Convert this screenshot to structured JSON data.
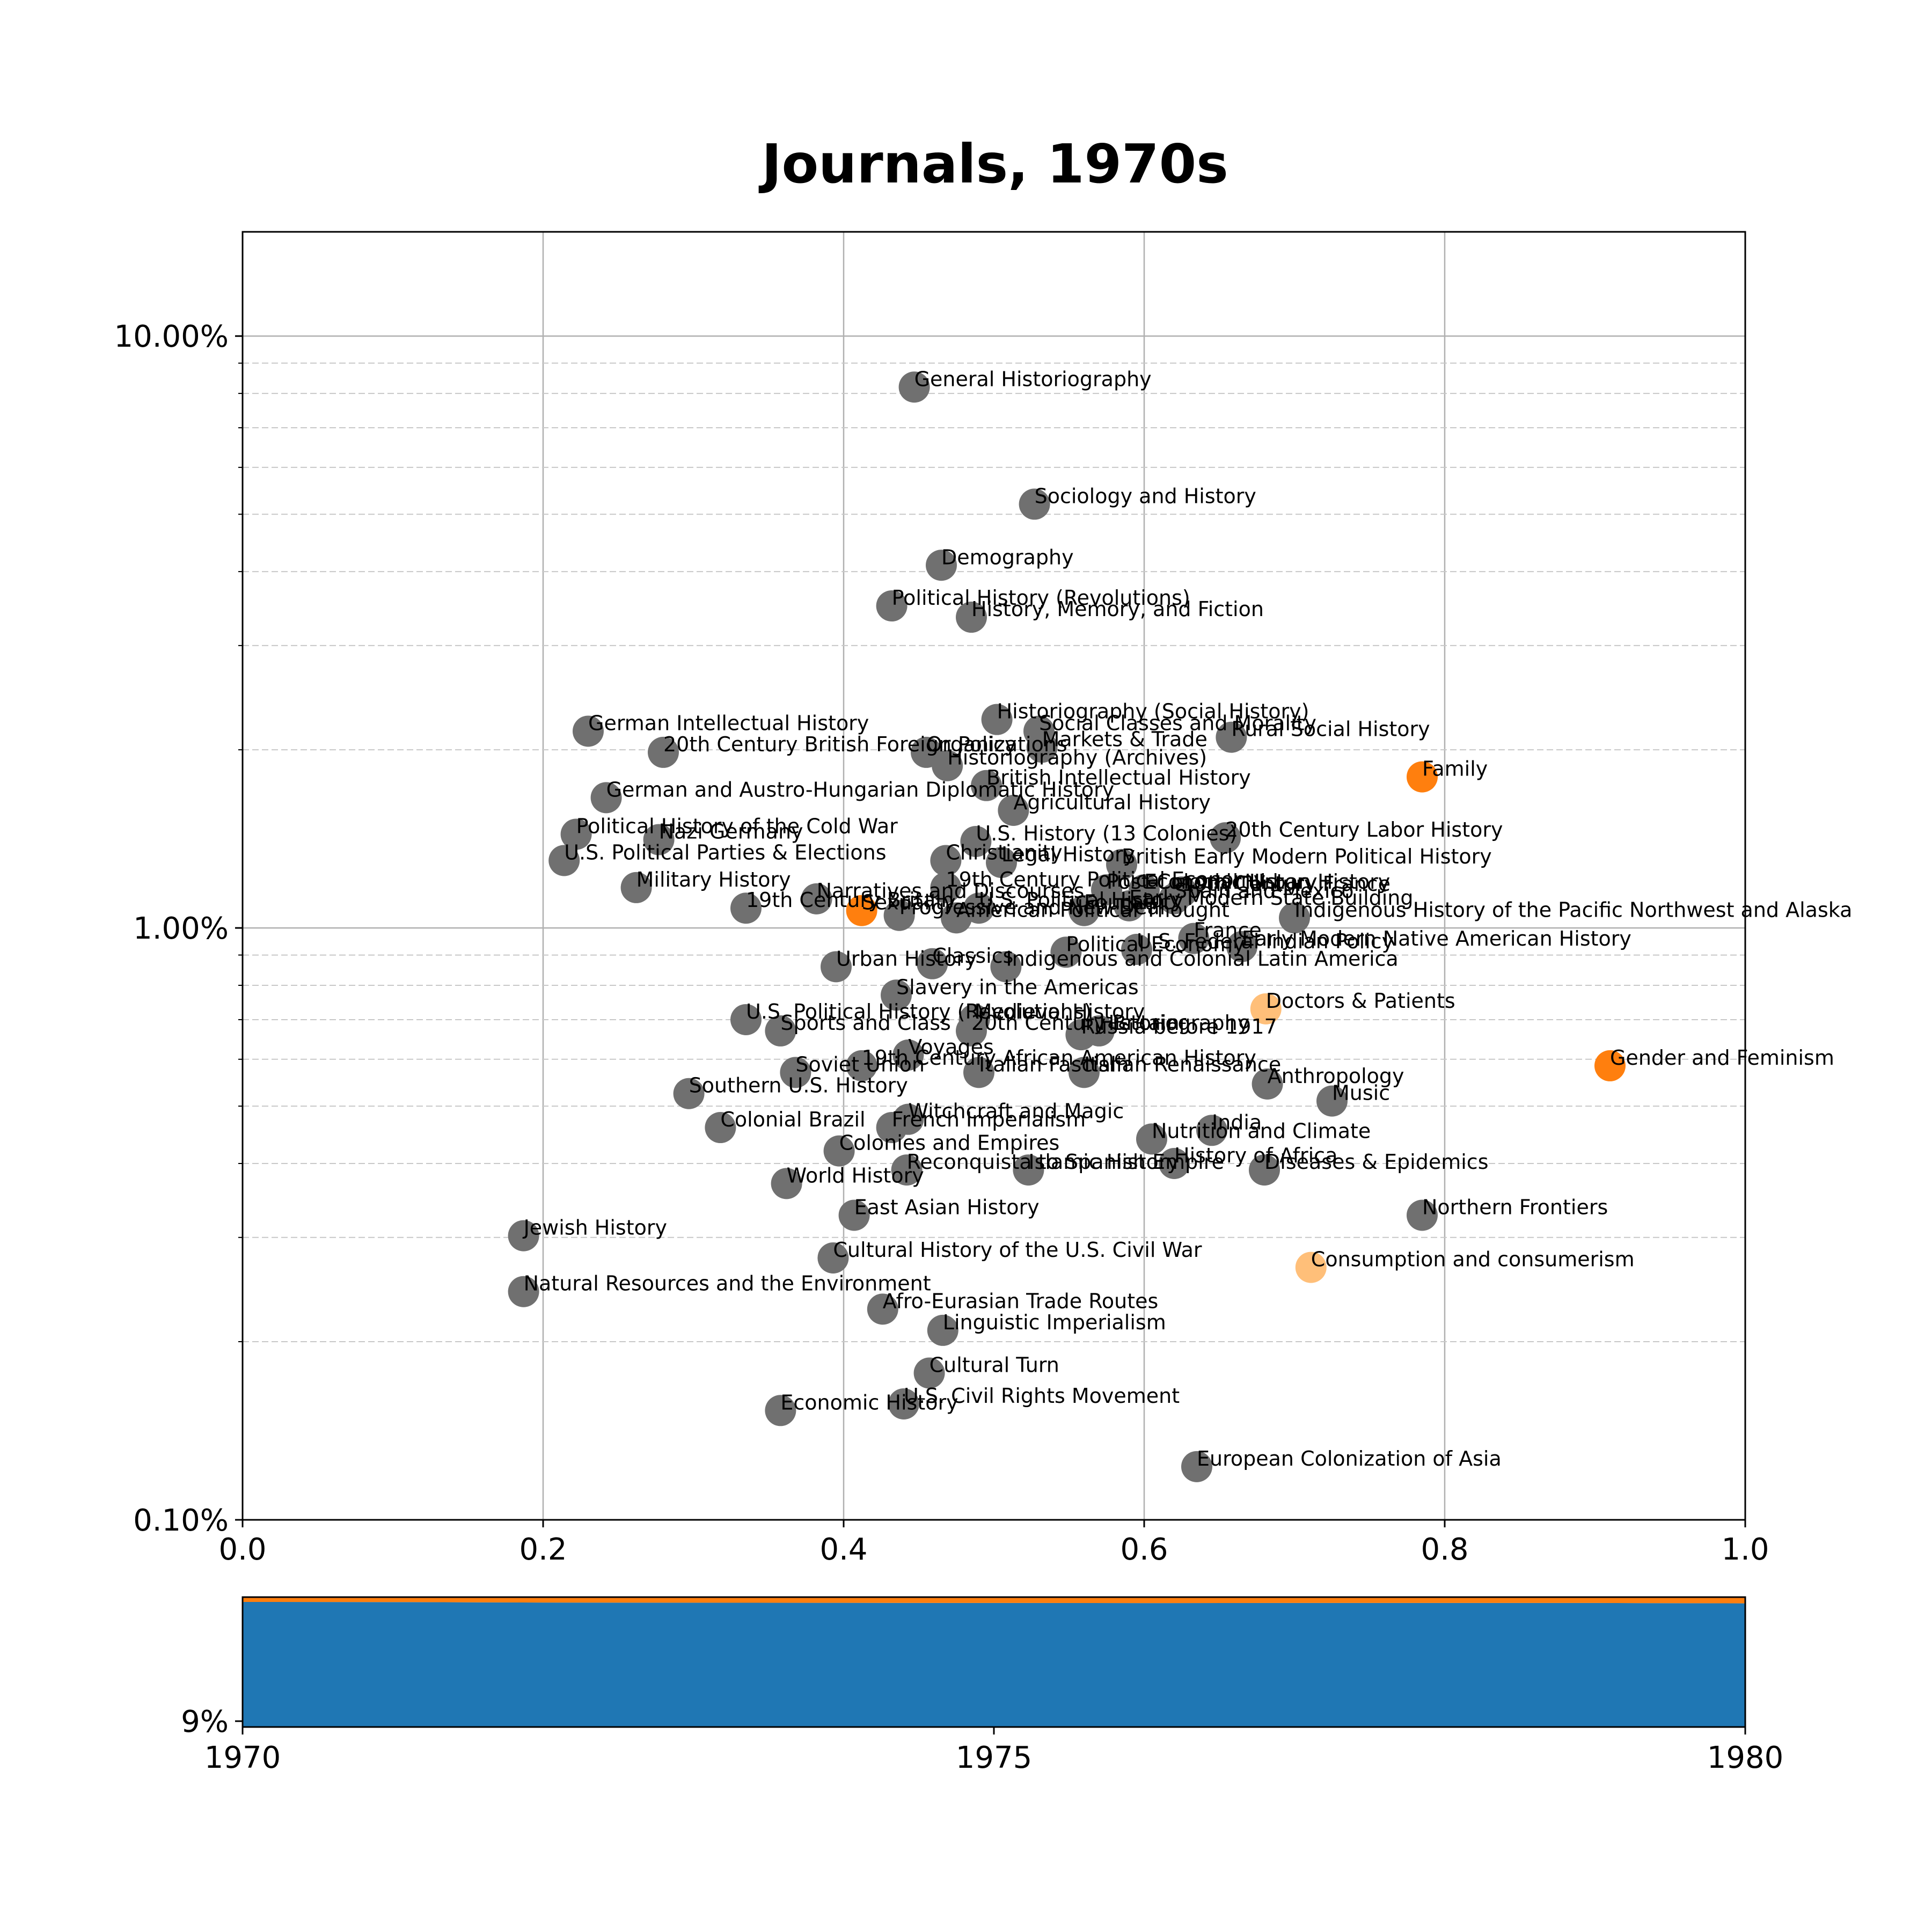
{
  "chart_data": [
    {
      "type": "scatter",
      "title": "Journals, 1970s",
      "xlabel": "",
      "ylabel": "",
      "xlim": [
        0.0,
        1.0
      ],
      "ylim": [
        0.1,
        15.0
      ],
      "yscale": "log",
      "grid": true,
      "x_ticks": [
        "0.0",
        "0.2",
        "0.4",
        "0.6",
        "0.8",
        "1.0"
      ],
      "y_ticks": [
        "0.10%",
        "1.00%",
        "10.00%"
      ],
      "colors": {
        "default": "#707070",
        "highlight": "#ff7f0e",
        "light_highlight": "#ffbf79"
      },
      "points": [
        {
          "label": "General Historiography",
          "x": 0.447,
          "y": 8.2,
          "color": "default"
        },
        {
          "label": "Sociology and History",
          "x": 0.527,
          "y": 5.2,
          "color": "default"
        },
        {
          "label": "Demography",
          "x": 0.465,
          "y": 4.1,
          "color": "default"
        },
        {
          "label": "Political History (Revolutions)",
          "x": 0.432,
          "y": 3.5,
          "color": "default"
        },
        {
          "label": "History, Memory, and Fiction",
          "x": 0.485,
          "y": 3.35,
          "color": "default"
        },
        {
          "label": "Historiography (Social History)",
          "x": 0.502,
          "y": 2.25,
          "color": "default"
        },
        {
          "label": "Social Classes and Morality",
          "x": 0.53,
          "y": 2.15,
          "color": "default"
        },
        {
          "label": "Rural Social History",
          "x": 0.658,
          "y": 2.1,
          "color": "default"
        },
        {
          "label": "German Intellectual History",
          "x": 0.23,
          "y": 2.15,
          "color": "default"
        },
        {
          "label": "20th Century British Foreign Policy",
          "x": 0.28,
          "y": 1.98,
          "color": "default"
        },
        {
          "label": "Markets & Trade",
          "x": 0.532,
          "y": 2.02,
          "color": "default"
        },
        {
          "label": "Organizations",
          "x": 0.455,
          "y": 1.98,
          "color": "default"
        },
        {
          "label": "Historiography (Archives)",
          "x": 0.469,
          "y": 1.88,
          "color": "default"
        },
        {
          "label": "Family",
          "x": 0.785,
          "y": 1.8,
          "color": "highlight"
        },
        {
          "label": "German and Austro-Hungarian Diplomatic History",
          "x": 0.242,
          "y": 1.66,
          "color": "default"
        },
        {
          "label": "British Intellectual History",
          "x": 0.495,
          "y": 1.74,
          "color": "default"
        },
        {
          "label": "Agricultural History",
          "x": 0.513,
          "y": 1.58,
          "color": "default"
        },
        {
          "label": "Political History of the Cold War",
          "x": 0.222,
          "y": 1.44,
          "color": "default"
        },
        {
          "label": "Nazi Germany",
          "x": 0.277,
          "y": 1.41,
          "color": "default"
        },
        {
          "label": "20th Century Labor History",
          "x": 0.654,
          "y": 1.42,
          "color": "default"
        },
        {
          "label": "U.S. History (13 Colonies)",
          "x": 0.488,
          "y": 1.4,
          "color": "default"
        },
        {
          "label": "U.S. Political Parties & Elections",
          "x": 0.214,
          "y": 1.3,
          "color": "default"
        },
        {
          "label": "Christianity",
          "x": 0.468,
          "y": 1.3,
          "color": "default"
        },
        {
          "label": "Legal History",
          "x": 0.505,
          "y": 1.29,
          "color": "default"
        },
        {
          "label": "British Early Modern Political History",
          "x": 0.585,
          "y": 1.28,
          "color": "default"
        },
        {
          "label": "Military History",
          "x": 0.262,
          "y": 1.17,
          "color": "default"
        },
        {
          "label": "19th Century Political Economy",
          "x": 0.468,
          "y": 1.17,
          "color": "default"
        },
        {
          "label": "Post-Colonial History",
          "x": 0.575,
          "y": 1.16,
          "color": "default"
        },
        {
          "label": "Economic Urban History",
          "x": 0.6,
          "y": 1.16,
          "color": "default"
        },
        {
          "label": "19th Century France",
          "x": 0.625,
          "y": 1.15,
          "color": "default"
        },
        {
          "label": "Narratives and Discourses",
          "x": 0.382,
          "y": 1.12,
          "color": "default"
        },
        {
          "label": "Spain and Mexico",
          "x": 0.62,
          "y": 1.12,
          "color": "default"
        },
        {
          "label": "Early Modern State Building",
          "x": 0.59,
          "y": 1.09,
          "color": "default"
        },
        {
          "label": "19th Century Britain",
          "x": 0.335,
          "y": 1.08,
          "color": "default"
        },
        {
          "label": "Sexuality",
          "x": 0.412,
          "y": 1.07,
          "color": "highlight"
        },
        {
          "label": "U.S. Political History",
          "x": 0.49,
          "y": 1.08,
          "color": "default"
        },
        {
          "label": "Foucault",
          "x": 0.56,
          "y": 1.07,
          "color": "default"
        },
        {
          "label": "Progressive and New Deal",
          "x": 0.437,
          "y": 1.05,
          "color": "default"
        },
        {
          "label": "American Political Thought",
          "x": 0.475,
          "y": 1.04,
          "color": "default"
        },
        {
          "label": "Indigenous History of the Pacific Northwest and Alaska",
          "x": 0.7,
          "y": 1.04,
          "color": "default"
        },
        {
          "label": "France",
          "x": 0.633,
          "y": 0.96,
          "color": "default"
        },
        {
          "label": "Early Modern Native American History",
          "x": 0.665,
          "y": 0.93,
          "color": "default"
        },
        {
          "label": "U.S. Federal Indian Policy",
          "x": 0.595,
          "y": 0.92,
          "color": "default"
        },
        {
          "label": "Political Economy",
          "x": 0.548,
          "y": 0.91,
          "color": "default"
        },
        {
          "label": "Classics",
          "x": 0.459,
          "y": 0.87,
          "color": "default"
        },
        {
          "label": "Urban History",
          "x": 0.395,
          "y": 0.86,
          "color": "default"
        },
        {
          "label": "Indigenous and Colonial Latin America",
          "x": 0.508,
          "y": 0.86,
          "color": "default"
        },
        {
          "label": "Slavery in the Americas",
          "x": 0.435,
          "y": 0.77,
          "color": "default"
        },
        {
          "label": "Doctors & Patients",
          "x": 0.681,
          "y": 0.73,
          "color": "light_highlight"
        },
        {
          "label": "U.S. Political History (Revolutions)",
          "x": 0.335,
          "y": 0.7,
          "color": "default"
        },
        {
          "label": "Medieval History",
          "x": 0.487,
          "y": 0.7,
          "color": "default"
        },
        {
          "label": "Sports and Class",
          "x": 0.358,
          "y": 0.67,
          "color": "default"
        },
        {
          "label": "20th Century Britain",
          "x": 0.485,
          "y": 0.67,
          "color": "default"
        },
        {
          "label": "Russia before 1917",
          "x": 0.558,
          "y": 0.66,
          "color": "default"
        },
        {
          "label": "Historiography",
          "x": 0.57,
          "y": 0.67,
          "color": "default"
        },
        {
          "label": "Voyages",
          "x": 0.443,
          "y": 0.61,
          "color": "default"
        },
        {
          "label": "Gender and Feminism",
          "x": 0.91,
          "y": 0.585,
          "color": "highlight"
        },
        {
          "label": "19th Century African American History",
          "x": 0.412,
          "y": 0.585,
          "color": "default"
        },
        {
          "label": "Soviet Union",
          "x": 0.368,
          "y": 0.57,
          "color": "default"
        },
        {
          "label": "Italian Fascism",
          "x": 0.49,
          "y": 0.57,
          "color": "default"
        },
        {
          "label": "Italian Renaissance",
          "x": 0.56,
          "y": 0.57,
          "color": "default"
        },
        {
          "label": "Anthropology",
          "x": 0.682,
          "y": 0.545,
          "color": "default"
        },
        {
          "label": "Southern U.S. History",
          "x": 0.297,
          "y": 0.525,
          "color": "default"
        },
        {
          "label": "Music",
          "x": 0.725,
          "y": 0.51,
          "color": "default"
        },
        {
          "label": "Witchcraft and Magic",
          "x": 0.443,
          "y": 0.475,
          "color": "default"
        },
        {
          "label": "Colonial Brazil",
          "x": 0.318,
          "y": 0.46,
          "color": "default"
        },
        {
          "label": "French Imperialism",
          "x": 0.432,
          "y": 0.46,
          "color": "default"
        },
        {
          "label": "India",
          "x": 0.645,
          "y": 0.455,
          "color": "default"
        },
        {
          "label": "Nutrition and Climate",
          "x": 0.605,
          "y": 0.44,
          "color": "default"
        },
        {
          "label": "Colonies and Empires",
          "x": 0.397,
          "y": 0.42,
          "color": "default"
        },
        {
          "label": "History of Africa",
          "x": 0.62,
          "y": 0.4,
          "color": "default"
        },
        {
          "label": "Reconquista to Spanish Empire",
          "x": 0.442,
          "y": 0.39,
          "color": "default"
        },
        {
          "label": "Islamic History",
          "x": 0.523,
          "y": 0.39,
          "color": "default"
        },
        {
          "label": "Diseases & Epidemics",
          "x": 0.68,
          "y": 0.39,
          "color": "default"
        },
        {
          "label": "World History",
          "x": 0.362,
          "y": 0.37,
          "color": "default"
        },
        {
          "label": "East Asian History",
          "x": 0.407,
          "y": 0.327,
          "color": "default"
        },
        {
          "label": "Northern Frontiers",
          "x": 0.785,
          "y": 0.327,
          "color": "default"
        },
        {
          "label": "Jewish History",
          "x": 0.187,
          "y": 0.302,
          "color": "default"
        },
        {
          "label": "Cultural History of the U.S. Civil War",
          "x": 0.393,
          "y": 0.277,
          "color": "default"
        },
        {
          "label": "Consumption and consumerism",
          "x": 0.711,
          "y": 0.267,
          "color": "light_highlight"
        },
        {
          "label": "Natural Resources and the Environment",
          "x": 0.187,
          "y": 0.243,
          "color": "default"
        },
        {
          "label": "Afro-Eurasian Trade Routes",
          "x": 0.426,
          "y": 0.227,
          "color": "default"
        },
        {
          "label": "Linguistic Imperialism",
          "x": 0.466,
          "y": 0.209,
          "color": "default"
        },
        {
          "label": "Cultural Turn",
          "x": 0.457,
          "y": 0.177,
          "color": "default"
        },
        {
          "label": "U.S. Civil Rights Movement",
          "x": 0.44,
          "y": 0.157,
          "color": "default"
        },
        {
          "label": "Economic History",
          "x": 0.358,
          "y": 0.153,
          "color": "default"
        },
        {
          "label": "European Colonization of Asia",
          "x": 0.635,
          "y": 0.123,
          "color": "default"
        }
      ]
    },
    {
      "type": "area",
      "x": [
        1970,
        1971,
        1972,
        1973,
        1974,
        1975,
        1976,
        1977,
        1978,
        1979,
        1980
      ],
      "xlim": [
        1970,
        1980
      ],
      "x_ticks": [
        "1970",
        "1975",
        "1980"
      ],
      "y_ticks": [
        "9%"
      ],
      "series": [
        {
          "color": "#1f77b4",
          "values": [
            96.3,
            96.2,
            95.8,
            95.7,
            95.6,
            95.5,
            95.4,
            95.5,
            95.5,
            95.5,
            95.2
          ]
        },
        {
          "color": "#ff7f0e",
          "values": [
            3.7,
            3.8,
            4.2,
            4.3,
            4.4,
            4.5,
            4.6,
            4.5,
            4.5,
            4.5,
            4.8
          ]
        }
      ]
    }
  ]
}
